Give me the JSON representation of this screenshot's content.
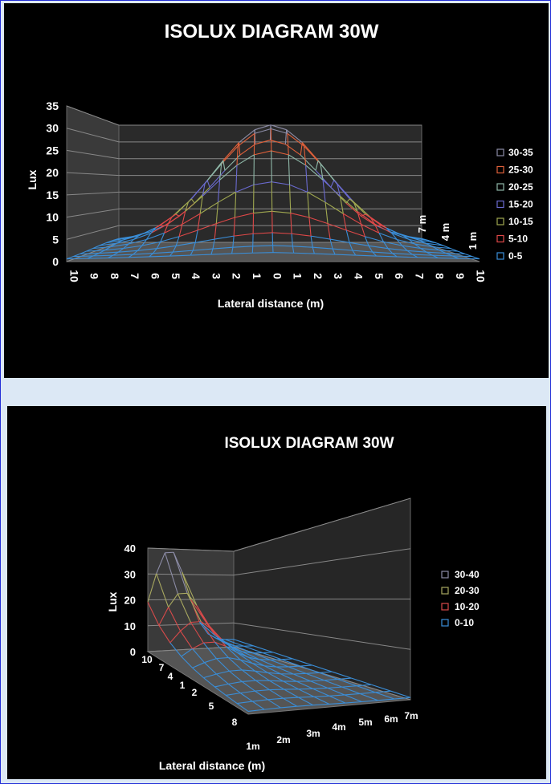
{
  "chart_data": [
    {
      "type": "surface",
      "title": "ISOLUX DIAGRAM 30W",
      "ylabel": "Lux",
      "xlabel": "Lateral distance (m)",
      "x_ticks": [
        "10",
        "9",
        "8",
        "7",
        "6",
        "5",
        "4",
        "3",
        "2",
        "1",
        "0",
        "1",
        "2",
        "3",
        "4",
        "5",
        "6",
        "7",
        "8",
        "9",
        "10"
      ],
      "y_ticks": [
        "0",
        "5",
        "10",
        "15",
        "20",
        "25",
        "30",
        "35"
      ],
      "depth_ticks": [
        "7 m",
        "4 m",
        "1 m"
      ],
      "ylim": [
        0,
        35
      ],
      "grid": true,
      "legend_position": "right",
      "legend": [
        {
          "label": "30-35",
          "color": "#8c8ca6"
        },
        {
          "label": "25-30",
          "color": "#e0603a"
        },
        {
          "label": "20-25",
          "color": "#8fb8a8"
        },
        {
          "label": "15-20",
          "color": "#6a6ad0"
        },
        {
          "label": "10-15",
          "color": "#a0a850"
        },
        {
          "label": "5-10",
          "color": "#e04848"
        },
        {
          "label": "0-5",
          "color": "#3a8ed8"
        }
      ],
      "peak_lux": 33
    },
    {
      "type": "surface",
      "title": "ISOLUX DIAGRAM 30W",
      "ylabel": "Lux",
      "xlabel": "Lateral distance (m)",
      "y_ticks": [
        "0",
        "10",
        "20",
        "30",
        "40"
      ],
      "depth_ticks": [
        "10",
        "7",
        "4",
        "1",
        "2",
        "5",
        "8"
      ],
      "x_ticks": [
        "1m",
        "2m",
        "3m",
        "4m",
        "5m",
        "6m",
        "7m"
      ],
      "ylim": [
        0,
        40
      ],
      "grid": true,
      "legend_position": "right",
      "legend": [
        {
          "label": "30-40",
          "color": "#8c8ca6"
        },
        {
          "label": "20-30",
          "color": "#a8a860"
        },
        {
          "label": "10-20",
          "color": "#d84a4a"
        },
        {
          "label": "0-10",
          "color": "#3a8ed8"
        }
      ],
      "peak_lux": 38
    }
  ]
}
